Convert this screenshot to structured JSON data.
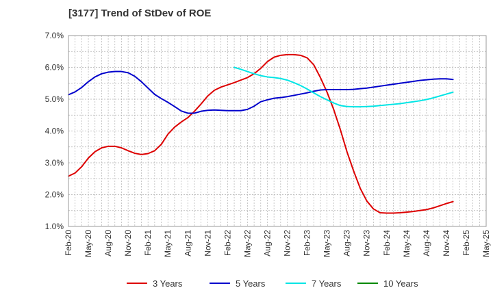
{
  "chart_data": {
    "type": "line",
    "title": "[3177]  Trend of StDev of ROE",
    "xlabel": "",
    "ylabel": "",
    "x_categories": [
      "Feb-20",
      "May-20",
      "Aug-20",
      "Nov-20",
      "Feb-21",
      "May-21",
      "Aug-21",
      "Nov-21",
      "Feb-22",
      "May-22",
      "Aug-22",
      "Nov-22",
      "Feb-23",
      "May-23",
      "Aug-23",
      "Nov-23",
      "Feb-24",
      "May-24",
      "Aug-24",
      "Nov-24",
      "Feb-25",
      "May-25"
    ],
    "y_ticks": [
      "1.0%",
      "2.0%",
      "3.0%",
      "4.0%",
      "5.0%",
      "6.0%",
      "7.0%"
    ],
    "ylim": [
      1.0,
      7.0
    ],
    "grid": true,
    "legend_position": "bottom",
    "series": [
      {
        "name": "3 Years",
        "color": "#dd0000",
        "points": [
          [
            0,
            2.58
          ],
          [
            1,
            2.68
          ],
          [
            2,
            2.88
          ],
          [
            3,
            3.15
          ],
          [
            4,
            3.35
          ],
          [
            5,
            3.47
          ],
          [
            6,
            3.52
          ],
          [
            7,
            3.52
          ],
          [
            8,
            3.47
          ],
          [
            9,
            3.38
          ],
          [
            10,
            3.3
          ],
          [
            11,
            3.26
          ],
          [
            12,
            3.29
          ],
          [
            13,
            3.38
          ],
          [
            14,
            3.58
          ],
          [
            15,
            3.9
          ],
          [
            16,
            4.12
          ],
          [
            17,
            4.28
          ],
          [
            18,
            4.42
          ],
          [
            19,
            4.62
          ],
          [
            20,
            4.85
          ],
          [
            21,
            5.1
          ],
          [
            22,
            5.28
          ],
          [
            23,
            5.38
          ],
          [
            24,
            5.45
          ],
          [
            25,
            5.52
          ],
          [
            26,
            5.6
          ],
          [
            27,
            5.68
          ],
          [
            28,
            5.8
          ],
          [
            29,
            5.97
          ],
          [
            30,
            6.18
          ],
          [
            31,
            6.32
          ],
          [
            32,
            6.38
          ],
          [
            33,
            6.4
          ],
          [
            34,
            6.4
          ],
          [
            35,
            6.38
          ],
          [
            36,
            6.3
          ],
          [
            37,
            6.08
          ],
          [
            38,
            5.68
          ],
          [
            39,
            5.22
          ],
          [
            40,
            4.68
          ],
          [
            41,
            4.05
          ],
          [
            42,
            3.35
          ],
          [
            43,
            2.75
          ],
          [
            44,
            2.2
          ],
          [
            45,
            1.8
          ],
          [
            46,
            1.55
          ],
          [
            47,
            1.43
          ],
          [
            48,
            1.42
          ],
          [
            49,
            1.42
          ],
          [
            50,
            1.43
          ],
          [
            51,
            1.45
          ],
          [
            52,
            1.47
          ],
          [
            53,
            1.5
          ],
          [
            54,
            1.53
          ],
          [
            55,
            1.58
          ],
          [
            56,
            1.65
          ],
          [
            57,
            1.72
          ],
          [
            58,
            1.78
          ]
        ]
      },
      {
        "name": "5 Years",
        "color": "#0000cc",
        "points": [
          [
            0,
            5.14
          ],
          [
            1,
            5.23
          ],
          [
            2,
            5.37
          ],
          [
            3,
            5.55
          ],
          [
            4,
            5.7
          ],
          [
            5,
            5.8
          ],
          [
            6,
            5.85
          ],
          [
            7,
            5.87
          ],
          [
            8,
            5.87
          ],
          [
            9,
            5.83
          ],
          [
            10,
            5.72
          ],
          [
            11,
            5.55
          ],
          [
            12,
            5.35
          ],
          [
            13,
            5.15
          ],
          [
            14,
            5.02
          ],
          [
            15,
            4.9
          ],
          [
            16,
            4.77
          ],
          [
            17,
            4.63
          ],
          [
            18,
            4.56
          ],
          [
            19,
            4.56
          ],
          [
            20,
            4.62
          ],
          [
            21,
            4.65
          ],
          [
            22,
            4.66
          ],
          [
            23,
            4.65
          ],
          [
            24,
            4.64
          ],
          [
            25,
            4.64
          ],
          [
            26,
            4.64
          ],
          [
            27,
            4.68
          ],
          [
            28,
            4.78
          ],
          [
            29,
            4.92
          ],
          [
            30,
            4.98
          ],
          [
            31,
            5.03
          ],
          [
            32,
            5.05
          ],
          [
            33,
            5.08
          ],
          [
            34,
            5.12
          ],
          [
            35,
            5.16
          ],
          [
            36,
            5.2
          ],
          [
            37,
            5.25
          ],
          [
            38,
            5.29
          ],
          [
            39,
            5.3
          ],
          [
            40,
            5.3
          ],
          [
            41,
            5.3
          ],
          [
            42,
            5.3
          ],
          [
            43,
            5.31
          ],
          [
            44,
            5.33
          ],
          [
            45,
            5.35
          ],
          [
            46,
            5.38
          ],
          [
            47,
            5.41
          ],
          [
            48,
            5.44
          ],
          [
            49,
            5.47
          ],
          [
            50,
            5.5
          ],
          [
            51,
            5.53
          ],
          [
            52,
            5.56
          ],
          [
            53,
            5.59
          ],
          [
            54,
            5.61
          ],
          [
            55,
            5.63
          ],
          [
            56,
            5.64
          ],
          [
            57,
            5.64
          ],
          [
            58,
            5.62
          ]
        ]
      },
      {
        "name": "7 Years",
        "color": "#00e5e5",
        "points": [
          [
            25,
            6.0
          ],
          [
            26,
            5.94
          ],
          [
            27,
            5.87
          ],
          [
            28,
            5.8
          ],
          [
            29,
            5.74
          ],
          [
            30,
            5.7
          ],
          [
            31,
            5.68
          ],
          [
            32,
            5.65
          ],
          [
            33,
            5.6
          ],
          [
            34,
            5.52
          ],
          [
            35,
            5.43
          ],
          [
            36,
            5.32
          ],
          [
            37,
            5.2
          ],
          [
            38,
            5.08
          ],
          [
            39,
            4.98
          ],
          [
            40,
            4.88
          ],
          [
            41,
            4.8
          ],
          [
            42,
            4.77
          ],
          [
            43,
            4.76
          ],
          [
            44,
            4.76
          ],
          [
            45,
            4.77
          ],
          [
            46,
            4.78
          ],
          [
            47,
            4.8
          ],
          [
            48,
            4.82
          ],
          [
            49,
            4.84
          ],
          [
            50,
            4.86
          ],
          [
            51,
            4.89
          ],
          [
            52,
            4.92
          ],
          [
            53,
            4.95
          ],
          [
            54,
            4.99
          ],
          [
            55,
            5.04
          ],
          [
            56,
            5.1
          ],
          [
            57,
            5.16
          ],
          [
            58,
            5.22
          ]
        ]
      },
      {
        "name": "10 Years",
        "color": "#008800",
        "points": []
      }
    ]
  }
}
